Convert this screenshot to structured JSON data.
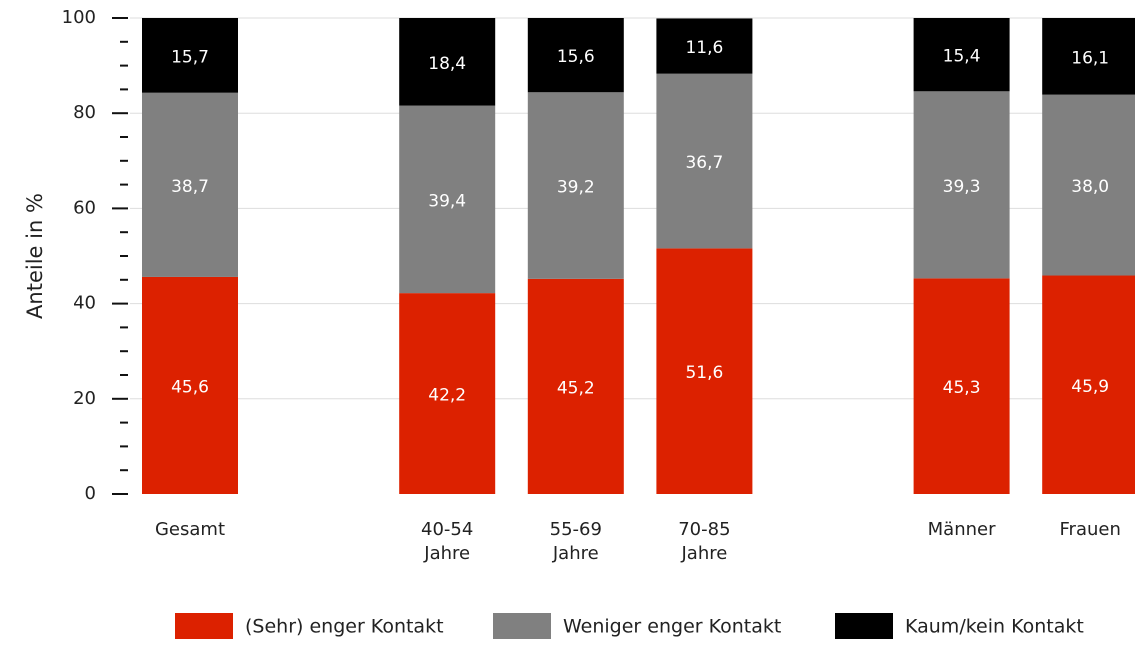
{
  "chart_data": {
    "type": "stacked_bar",
    "y_label": "Anteile in %",
    "categories": [
      [
        "Gesamt"
      ],
      null,
      [
        "40-54",
        "Jahre"
      ],
      [
        "55-69",
        "Jahre"
      ],
      [
        "70-85",
        "Jahre"
      ],
      null,
      [
        "Männer"
      ],
      [
        "Frauen"
      ]
    ],
    "series": [
      {
        "name": "(Sehr) enger Kontakt",
        "color": "#dc2100",
        "values": [
          45.6,
          null,
          42.2,
          45.2,
          51.6,
          null,
          45.3,
          45.9
        ],
        "value_labels": [
          "45,6",
          null,
          "42,2",
          "45,2",
          "51,6",
          null,
          "45,3",
          "45,9"
        ]
      },
      {
        "name": "Weniger enger Kontakt",
        "color": "#808080",
        "values": [
          38.7,
          null,
          39.4,
          39.2,
          36.7,
          null,
          39.3,
          38.0
        ],
        "value_labels": [
          "38,7",
          null,
          "39,4",
          "39,2",
          "36,7",
          null,
          "39,3",
          "38,0"
        ]
      },
      {
        "name": "Kaum/kein Kontakt",
        "color": "#000000",
        "values": [
          15.7,
          null,
          18.4,
          15.6,
          11.6,
          null,
          15.4,
          16.1
        ],
        "value_labels": [
          "15,7",
          null,
          "18,4",
          "15,6",
          "11,6",
          null,
          "15,4",
          "16,1"
        ]
      }
    ],
    "ylim": [
      0,
      100
    ],
    "yticks": [
      0,
      20,
      40,
      60,
      80,
      100
    ],
    "yminorticks": [
      5,
      10,
      15,
      25,
      30,
      35,
      45,
      50,
      55,
      65,
      70,
      75,
      85,
      90,
      95
    ],
    "grid": true,
    "legend": "bottom"
  }
}
